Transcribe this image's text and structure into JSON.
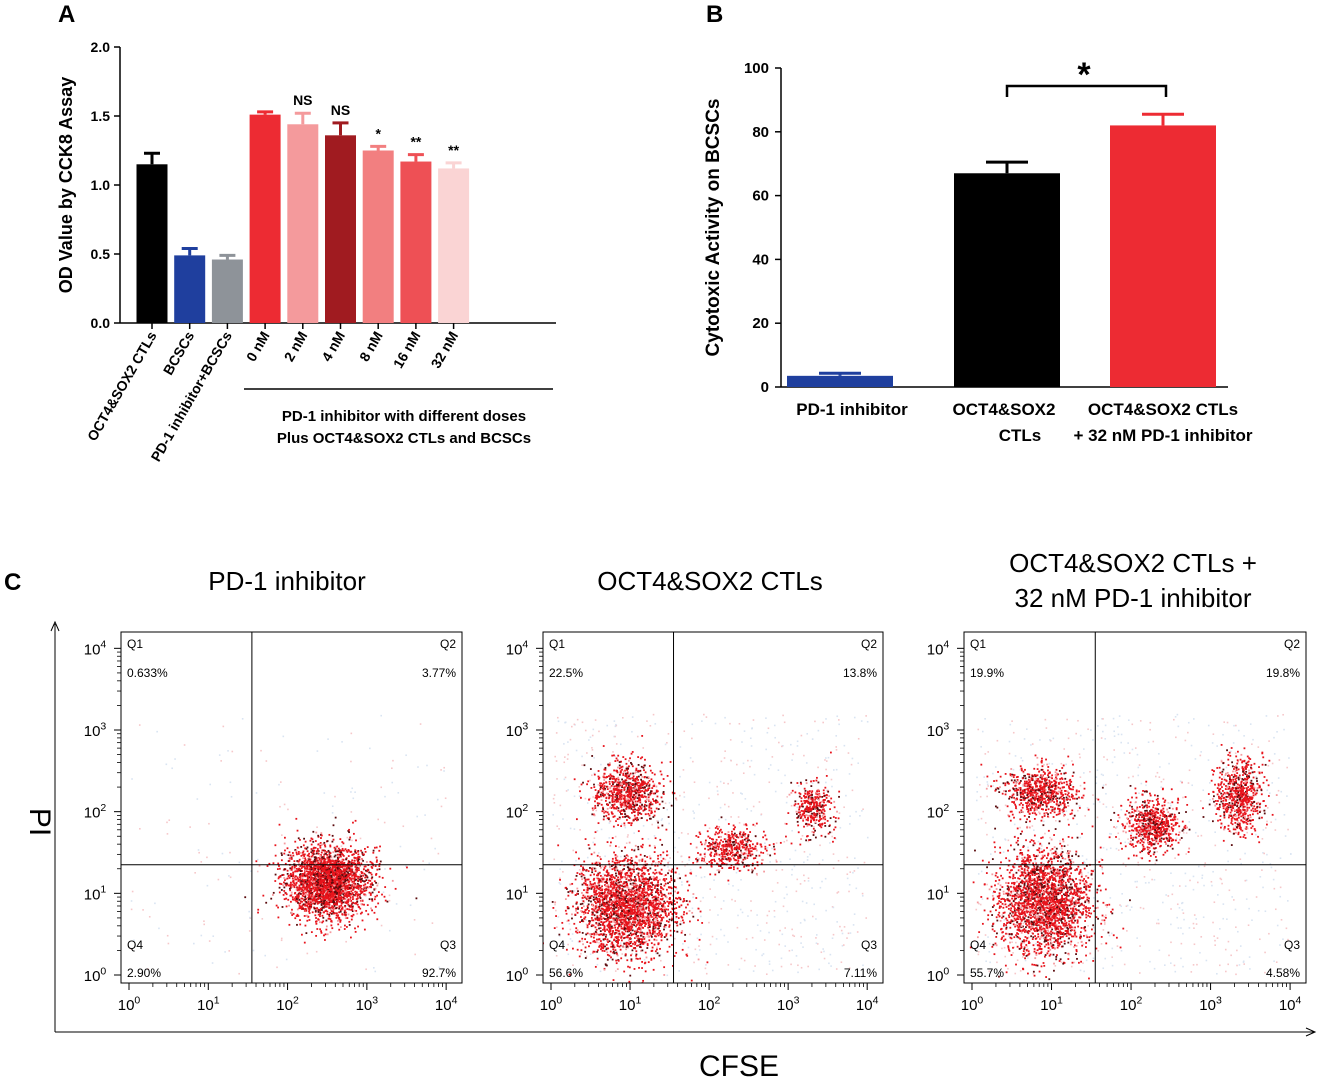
{
  "panel_labels": [
    "A",
    "B",
    "C"
  ],
  "colors": {
    "black": "#000000",
    "blue": "#1f3f9e",
    "gray": "#8e9399",
    "red": "#ed2b33",
    "light_red": "#f49a9c",
    "dark_red": "#a01b20",
    "salmon": "#f27f80",
    "coral": "#ee5055",
    "pale_pink": "#fad4d4",
    "dot_red": "#e8141c",
    "dot_dark": "#5a0a0c"
  },
  "chart_data": [
    {
      "id": "A",
      "type": "bar",
      "ylabel": "OD Value by CCK8 Assay",
      "ylim": [
        0,
        2.0
      ],
      "yticks": [
        "0.0",
        "0.5",
        "1.0",
        "1.5",
        "2.0"
      ],
      "categories": [
        "OCT4&SOX2 CTLs",
        "BCSCs",
        "PD-1 inhibitor+BCSCs",
        "0 nM",
        "2 nM",
        "4 nM",
        "8 nM",
        "16 nM",
        "32 nM"
      ],
      "values": [
        1.15,
        0.49,
        0.46,
        1.51,
        1.44,
        1.36,
        1.25,
        1.17,
        1.12
      ],
      "errors": [
        0.08,
        0.05,
        0.03,
        0.02,
        0.08,
        0.09,
        0.03,
        0.05,
        0.04
      ],
      "bar_colors": [
        "black",
        "blue",
        "gray",
        "red",
        "light_red",
        "dark_red",
        "salmon",
        "coral",
        "pale_pink"
      ],
      "annotations": [
        "",
        "",
        "",
        "",
        "NS",
        "NS",
        "*",
        "**",
        "**"
      ],
      "group_label": [
        "PD-1 inhibitor with different doses",
        "Plus OCT4&SOX2 CTLs and BCSCs"
      ]
    },
    {
      "id": "B",
      "type": "bar",
      "ylabel": "Cytotoxic Activity on BCSCs",
      "ylim": [
        0,
        100
      ],
      "yticks": [
        "0",
        "20",
        "40",
        "60",
        "80",
        "100"
      ],
      "categories": [
        [
          "PD-1 inhibitor"
        ],
        [
          "OCT4&SOX2",
          "CTLs"
        ],
        [
          "OCT4&SOX2 CTLs",
          "+ 32 nM PD-1 inhibitor"
        ]
      ],
      "values": [
        3.5,
        67,
        82
      ],
      "errors": [
        0.8,
        3.5,
        3.5
      ],
      "bar_colors": [
        "blue",
        "black",
        "red"
      ],
      "significance": "*"
    },
    {
      "id": "C",
      "type": "scatter",
      "xlabel": "CFSE",
      "ylabel": "PI",
      "scale": "log",
      "ticks": [
        "10^0",
        "10^1",
        "10^2",
        "10^3",
        "10^4"
      ],
      "quadrant_names": [
        "Q1",
        "Q2",
        "Q3",
        "Q4"
      ],
      "plots": [
        {
          "title": [
            "PD-1 inhibitor"
          ],
          "quadrant_gate": [
            1.55,
            1.35
          ],
          "quadrants": {
            "Q1": "0.633%",
            "Q2": "3.77%",
            "Q3": "92.7%",
            "Q4": "2.90%"
          },
          "clusters": [
            {
              "x": 2.5,
              "y": 1.15,
              "sx": 0.26,
              "sy": 0.22,
              "n": 2600
            }
          ],
          "noise": 160
        },
        {
          "title": [
            "OCT4&SOX2 CTLs"
          ],
          "quadrant_gate": [
            1.55,
            1.35
          ],
          "quadrants": {
            "Q1": "22.5%",
            "Q2": "13.8%",
            "Q3": "7.11%",
            "Q4": "56.6%"
          },
          "clusters": [
            {
              "x": 0.95,
              "y": 0.85,
              "sx": 0.32,
              "sy": 0.3,
              "n": 2300
            },
            {
              "x": 0.95,
              "y": 2.25,
              "sx": 0.22,
              "sy": 0.18,
              "n": 800
            },
            {
              "x": 2.3,
              "y": 1.55,
              "sx": 0.2,
              "sy": 0.13,
              "n": 450
            },
            {
              "x": 3.3,
              "y": 2.05,
              "sx": 0.12,
              "sy": 0.16,
              "n": 350
            }
          ],
          "noise": 700
        },
        {
          "title": [
            "OCT4&SOX2 CTLs +",
            "32 nM PD-1 inhibitor"
          ],
          "quadrant_gate": [
            1.55,
            1.35
          ],
          "quadrants": {
            "Q1": "19.9%",
            "Q2": "19.8%",
            "Q3": "4.58%",
            "Q4": "55.7%"
          },
          "clusters": [
            {
              "x": 0.9,
              "y": 0.9,
              "sx": 0.3,
              "sy": 0.32,
              "n": 2300
            },
            {
              "x": 0.85,
              "y": 2.25,
              "sx": 0.22,
              "sy": 0.16,
              "n": 700
            },
            {
              "x": 2.25,
              "y": 1.85,
              "sx": 0.17,
              "sy": 0.16,
              "n": 650
            },
            {
              "x": 3.35,
              "y": 2.2,
              "sx": 0.15,
              "sy": 0.22,
              "n": 650
            }
          ],
          "noise": 700
        }
      ]
    }
  ]
}
